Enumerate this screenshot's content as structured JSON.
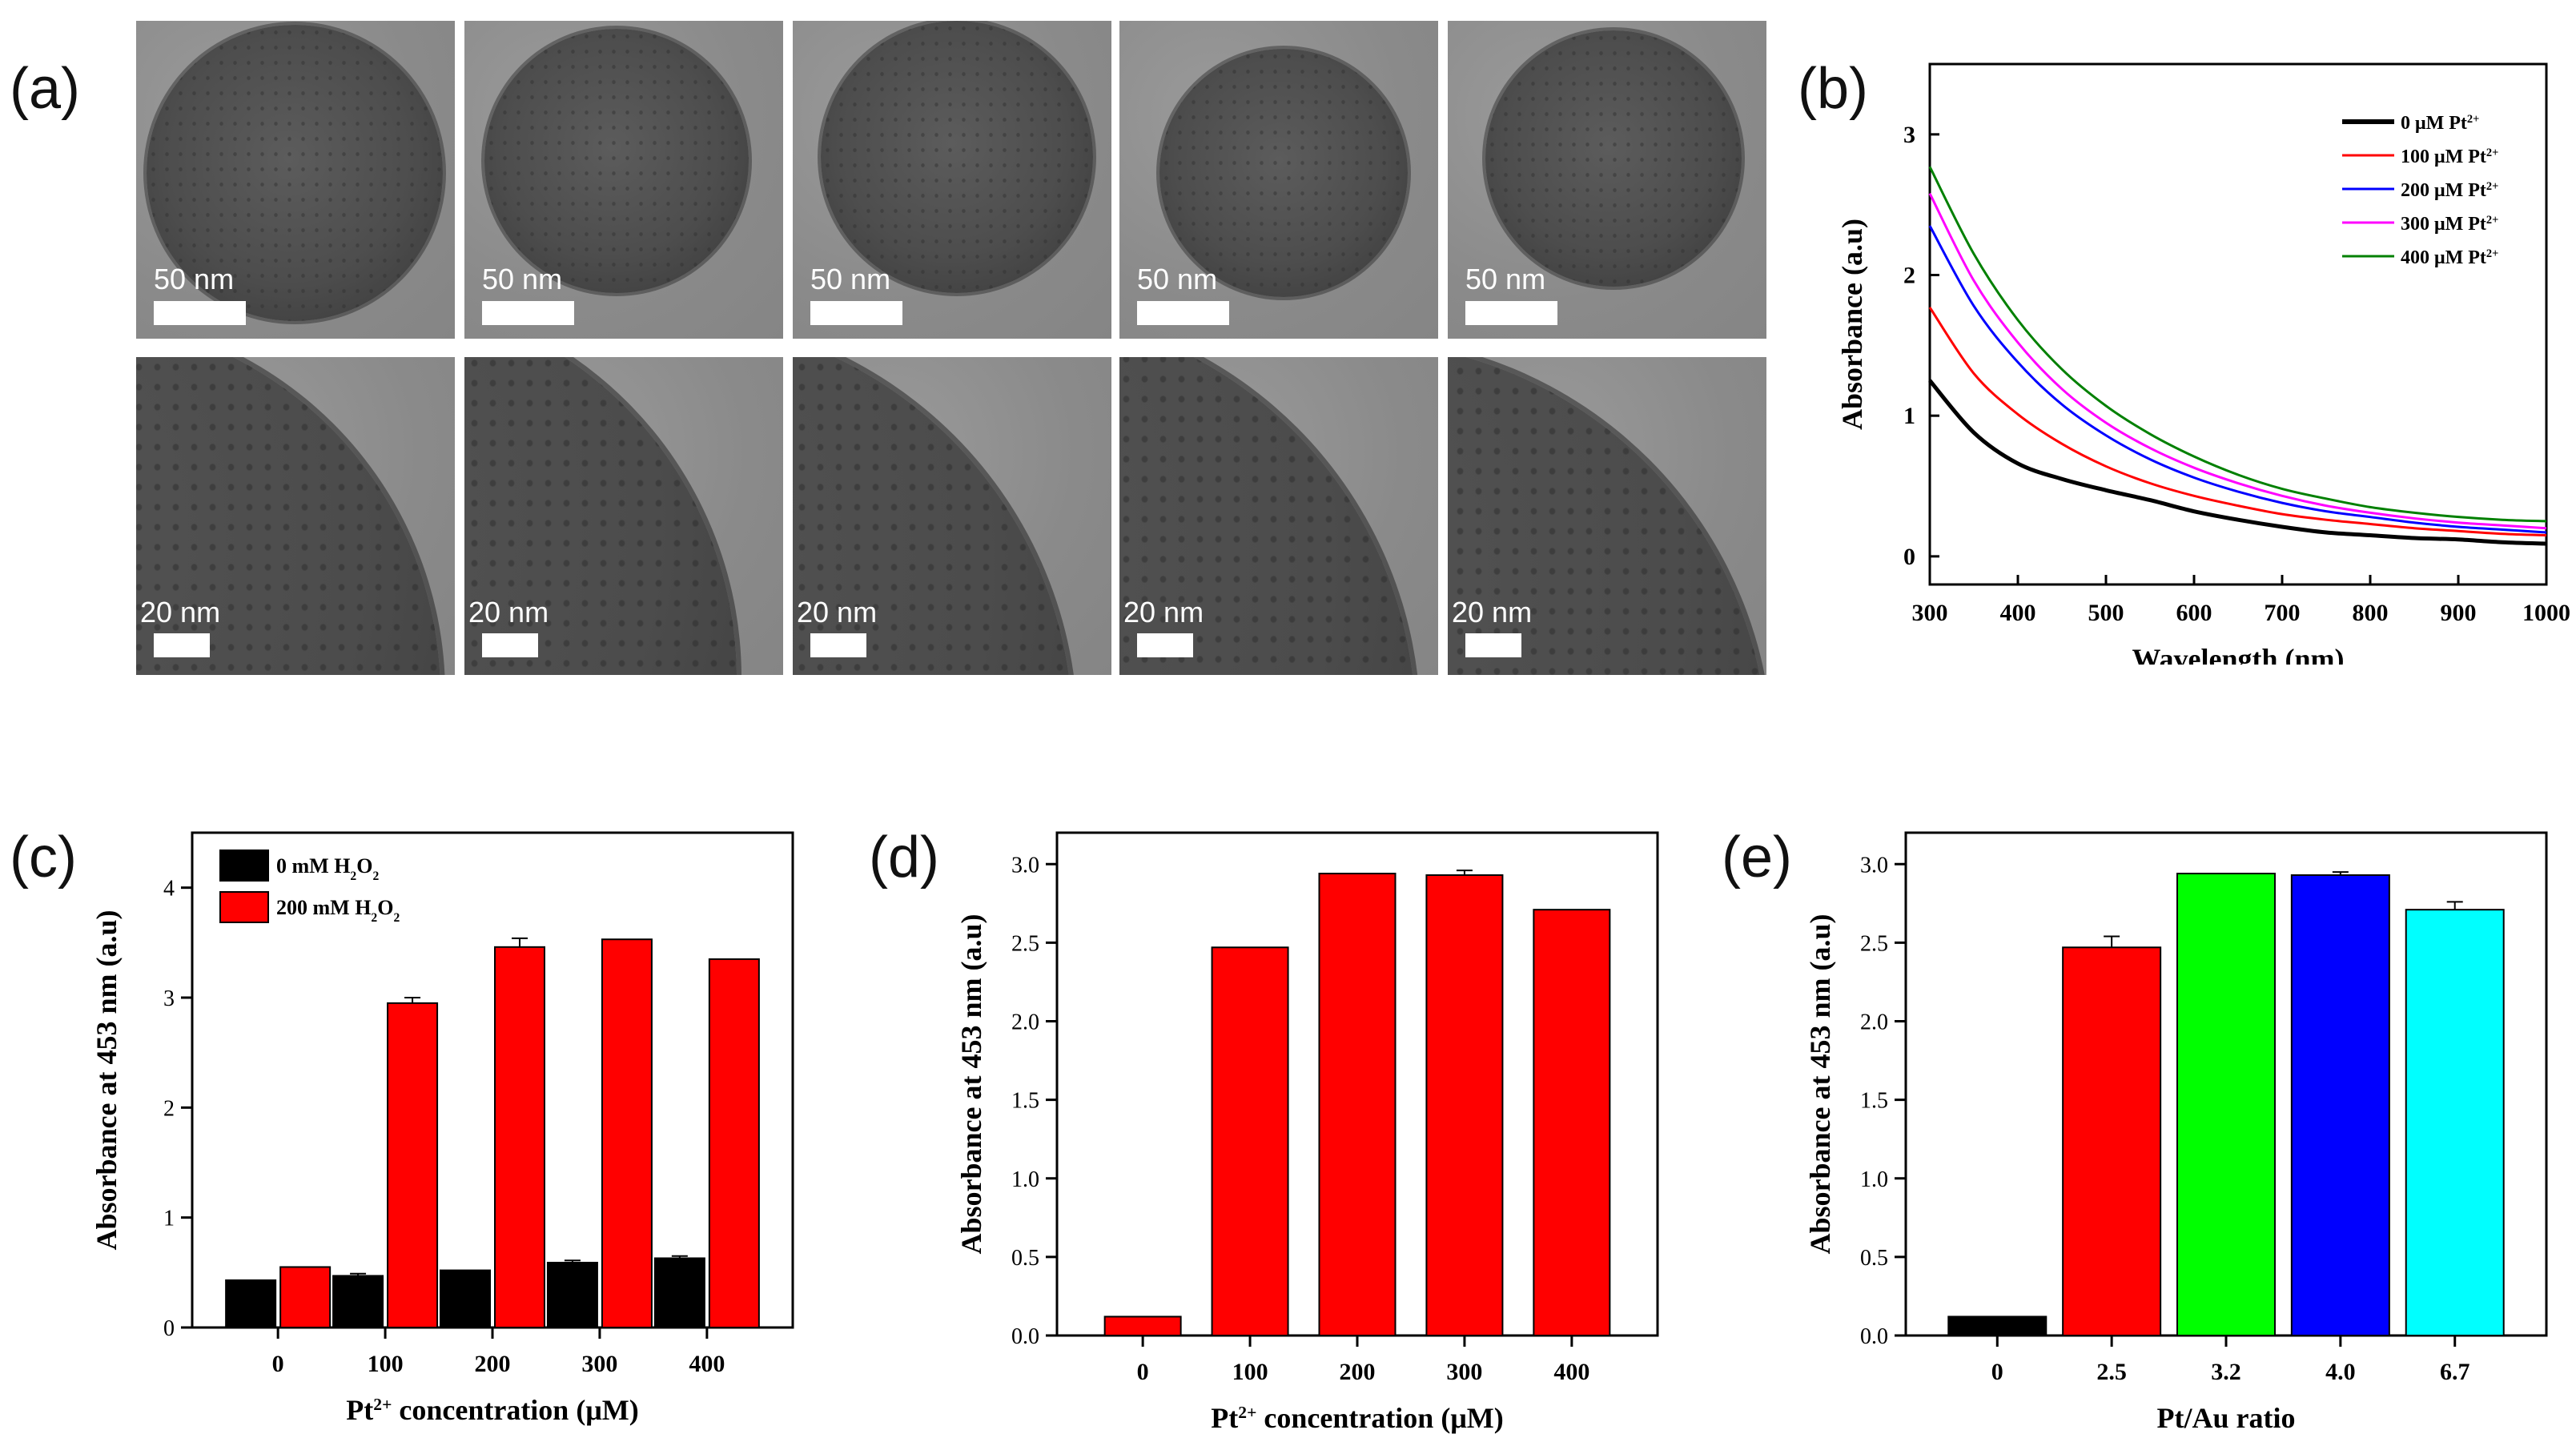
{
  "panel_labels": [
    "(a)",
    "(b)",
    "(c)",
    "(d)",
    "(e)"
  ],
  "tem": {
    "scale_top": "50 nm",
    "scale_bottom": "20 nm"
  },
  "colors": {
    "black": "#000000",
    "red": "#ff0000",
    "blue": "#0000ff",
    "magenta": "#ff00ff",
    "green": "#008000",
    "bright_green": "#00ff00",
    "cyan": "#00ffff"
  },
  "chart_data": [
    {
      "id": "b",
      "type": "line",
      "xlabel": "Wavelength (nm)",
      "ylabel": "Absorbance (a.u)",
      "xlim": [
        300,
        1000
      ],
      "ylim": [
        -0.2,
        3.5
      ],
      "xticks": [
        300,
        400,
        500,
        600,
        700,
        800,
        900,
        1000
      ],
      "yticks": [
        0,
        1,
        2,
        3
      ],
      "legend_position": "top-right",
      "x": [
        300,
        350,
        400,
        450,
        500,
        550,
        600,
        650,
        700,
        750,
        800,
        850,
        900,
        950,
        1000
      ],
      "series": [
        {
          "name": "0 μM Pt²⁺",
          "color": "#000000",
          "values": [
            1.25,
            0.88,
            0.66,
            0.55,
            0.47,
            0.4,
            0.32,
            0.26,
            0.21,
            0.17,
            0.15,
            0.13,
            0.12,
            0.1,
            0.09
          ]
        },
        {
          "name": "100 μM Pt²⁺",
          "color": "#ff0000",
          "values": [
            1.77,
            1.3,
            1.01,
            0.8,
            0.64,
            0.52,
            0.43,
            0.36,
            0.3,
            0.26,
            0.23,
            0.2,
            0.18,
            0.16,
            0.15
          ]
        },
        {
          "name": "200 μM Pt²⁺",
          "color": "#0000ff",
          "values": [
            2.35,
            1.78,
            1.38,
            1.08,
            0.86,
            0.69,
            0.56,
            0.46,
            0.38,
            0.32,
            0.28,
            0.24,
            0.21,
            0.19,
            0.17
          ]
        },
        {
          "name": "300 μM Pt²⁺",
          "color": "#ff00ff",
          "values": [
            2.58,
            1.96,
            1.52,
            1.19,
            0.95,
            0.77,
            0.63,
            0.52,
            0.43,
            0.36,
            0.31,
            0.27,
            0.24,
            0.22,
            0.2
          ]
        },
        {
          "name": "400 μM Pt²⁺",
          "color": "#008000",
          "values": [
            2.77,
            2.15,
            1.68,
            1.33,
            1.07,
            0.87,
            0.71,
            0.58,
            0.48,
            0.41,
            0.35,
            0.31,
            0.28,
            0.26,
            0.25
          ]
        }
      ]
    },
    {
      "id": "c",
      "type": "bar",
      "xlabel": "Pt²⁺ concentration (μM)",
      "ylabel": "Absorbance at 453 nm (a.u)",
      "ylim": [
        0,
        4.5
      ],
      "yticks": [
        0,
        1,
        2,
        3,
        4
      ],
      "categories": [
        "0",
        "100",
        "200",
        "300",
        "400"
      ],
      "legend_position": "top-left",
      "series": [
        {
          "name": "0 mM H₂O₂",
          "color": "#000000",
          "values": [
            0.43,
            0.47,
            0.52,
            0.59,
            0.63
          ],
          "errors": [
            0.0,
            0.02,
            0.0,
            0.02,
            0.02
          ]
        },
        {
          "name": "200 mM H₂O₂",
          "color": "#ff0000",
          "values": [
            0.55,
            2.95,
            3.46,
            3.53,
            3.35
          ],
          "errors": [
            0.0,
            0.05,
            0.08,
            0.0,
            0.0
          ]
        }
      ]
    },
    {
      "id": "d",
      "type": "bar",
      "xlabel": "Pt²⁺ concentration (μM)",
      "ylabel": "Absorbance at 453 nm (a.u)",
      "ylim": [
        0,
        3.2
      ],
      "yticks": [
        0.0,
        0.5,
        1.0,
        1.5,
        2.0,
        2.5,
        3.0
      ],
      "categories": [
        "0",
        "100",
        "200",
        "300",
        "400"
      ],
      "series": [
        {
          "name": "",
          "color": "#ff0000",
          "values": [
            0.12,
            2.47,
            2.94,
            2.93,
            2.71
          ],
          "errors": [
            0.0,
            0.0,
            0.0,
            0.03,
            0.0
          ]
        }
      ]
    },
    {
      "id": "e",
      "type": "bar",
      "xlabel": "Pt/Au ratio",
      "ylabel": "Absorbance at 453 nm (a.u)",
      "ylim": [
        0,
        3.2
      ],
      "yticks": [
        0.0,
        0.5,
        1.0,
        1.5,
        2.0,
        2.5,
        3.0
      ],
      "categories": [
        "0",
        "2.5",
        "3.2",
        "4.0",
        "6.7"
      ],
      "series": [
        {
          "name": "",
          "colors": [
            "#000000",
            "#ff0000",
            "#00ff00",
            "#0000ff",
            "#00ffff"
          ],
          "values": [
            0.12,
            2.47,
            2.94,
            2.93,
            2.71
          ],
          "errors": [
            0.0,
            0.07,
            0.0,
            0.02,
            0.05
          ]
        }
      ]
    }
  ]
}
